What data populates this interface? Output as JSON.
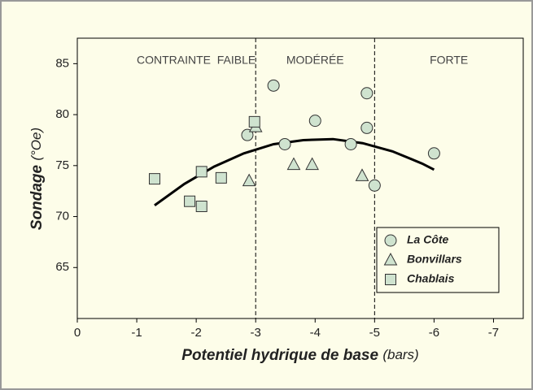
{
  "chart_data": {
    "type": "scatter",
    "x_label": "Potentiel hydrique de base",
    "x_unit": "(bars)",
    "y_label": "Sondage",
    "y_unit": "(°Oe)",
    "xlim": [
      0,
      -7.5
    ],
    "xticks": [
      0,
      -1,
      -2,
      -3,
      -4,
      -5,
      -6,
      -7
    ],
    "ylim": [
      60,
      87.5
    ],
    "yticks": [
      65,
      70,
      75,
      80,
      85
    ],
    "zones": [
      {
        "label": "CONTRAINTE  FAIBLE",
        "x": -2
      },
      {
        "label": "MODÉRÉE",
        "x": -4
      },
      {
        "label": "FORTE",
        "x": -6.25
      }
    ],
    "zone_boundaries": [
      -3,
      -5
    ],
    "series": [
      {
        "name": "La Côte",
        "marker": "circle",
        "color": "#cfe3cf",
        "x": [
          -2.86,
          -3.3,
          -3.49,
          -4.0,
          -4.6,
          -4.87,
          -4.87,
          -5.0,
          -6.0
        ],
        "values": [
          78.0,
          82.85,
          77.1,
          79.4,
          77.1,
          78.7,
          82.1,
          73.05,
          76.2
        ]
      },
      {
        "name": "Bonvillars",
        "marker": "triangle",
        "color": "#cfe3cf",
        "x": [
          -3.0,
          -2.89,
          -3.64,
          -3.95,
          -4.79
        ],
        "values": [
          78.8,
          73.5,
          75.1,
          75.1,
          74.0
        ]
      },
      {
        "name": "Chablais",
        "marker": "square",
        "color": "#cfe3cf",
        "x": [
          -1.3,
          -1.89,
          -2.09,
          -2.09,
          -2.42,
          -2.98
        ],
        "values": [
          73.7,
          71.5,
          71.0,
          74.4,
          73.8,
          79.3
        ]
      }
    ],
    "fit": {
      "color": "#000000",
      "x": [
        -1.3,
        -1.8,
        -2.3,
        -2.8,
        -3.3,
        -3.8,
        -4.3,
        -4.8,
        -5.3,
        -5.8,
        -6.0
      ],
      "values": [
        71.1,
        73.2,
        74.9,
        76.2,
        77.1,
        77.5,
        77.6,
        77.2,
        76.4,
        75.2,
        74.6
      ]
    }
  }
}
